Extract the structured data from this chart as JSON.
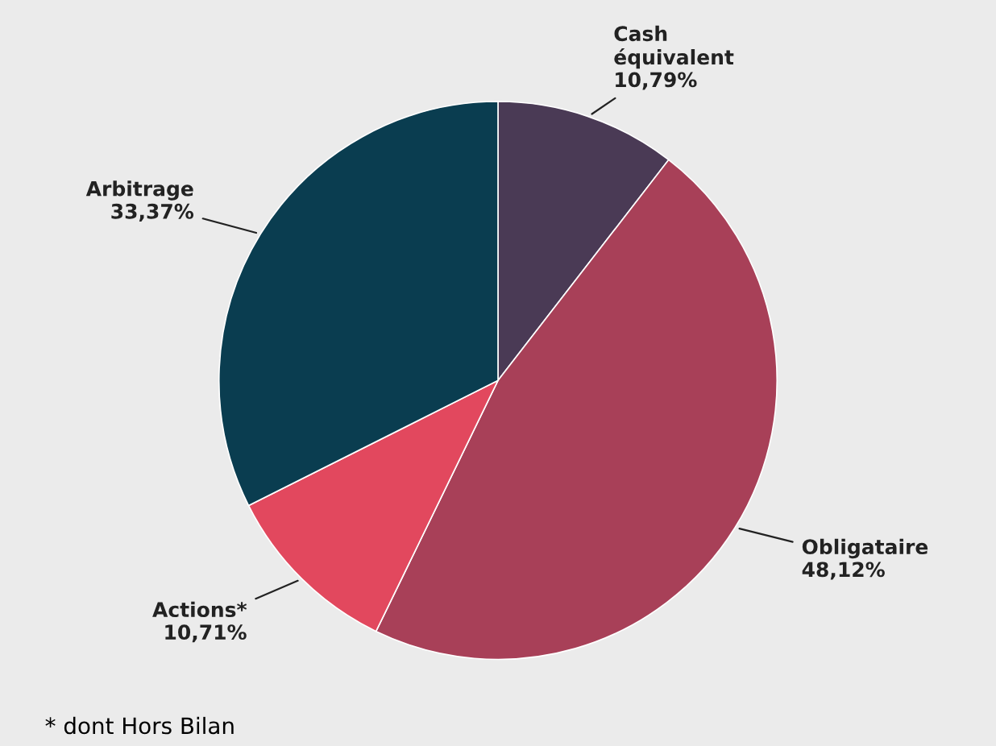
{
  "chart_data": {
    "type": "pie",
    "categories": [
      "Cash\néquivalent",
      "Obligataire",
      "Actions*",
      "Arbitrage"
    ],
    "values": [
      10.79,
      48.12,
      10.71,
      33.37
    ],
    "value_labels": [
      "10,79%",
      "48,12%",
      "10,71%",
      "33,37%"
    ],
    "colors": [
      "#4a3a55",
      "#a84058",
      "#e2485e",
      "#0a3d50"
    ],
    "annotations": [
      "* dont Hors Bilan"
    ],
    "legend": false
  }
}
